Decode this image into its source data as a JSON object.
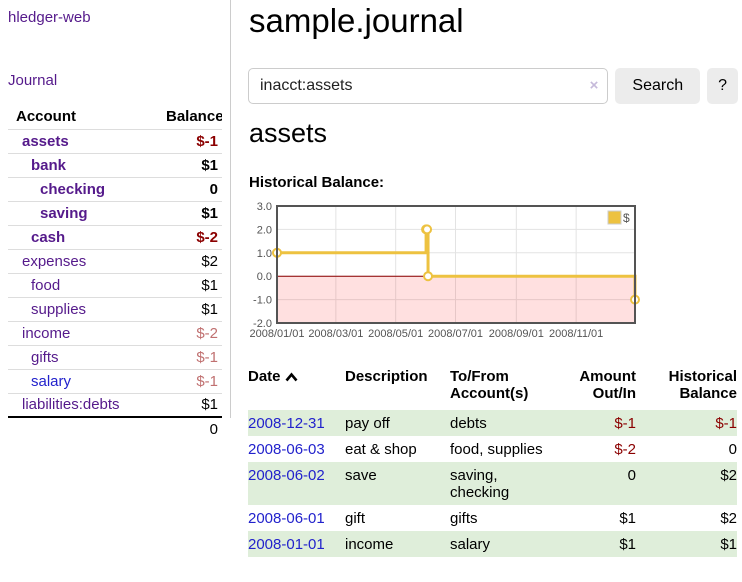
{
  "app": {
    "title": "hledger-web"
  },
  "nav": {
    "journal": "Journal"
  },
  "sidebar": {
    "header": {
      "account": "Account",
      "balance": "Balance"
    },
    "accounts": [
      {
        "name": "assets",
        "depth": 1,
        "bold": true,
        "balance": "$-1"
      },
      {
        "name": "bank",
        "depth": 2,
        "bold": true,
        "balance": "$1"
      },
      {
        "name": "checking",
        "depth": 3,
        "bold": true,
        "balance": "0"
      },
      {
        "name": "saving",
        "depth": 3,
        "bold": true,
        "balance": "$1"
      },
      {
        "name": "cash",
        "depth": 2,
        "bold": true,
        "balance": "$-2"
      },
      {
        "name": "expenses",
        "depth": 1,
        "bold": false,
        "balance": "$2"
      },
      {
        "name": "food",
        "depth": 2,
        "bold": false,
        "balance": "$1"
      },
      {
        "name": "supplies",
        "depth": 2,
        "bold": false,
        "balance": "$1"
      },
      {
        "name": "income",
        "depth": 1,
        "bold": false,
        "balance": "$-2"
      },
      {
        "name": "gifts",
        "depth": 2,
        "bold": false,
        "balance": "$-1"
      },
      {
        "name": "salary",
        "depth": 2,
        "bold": false,
        "balance": "$-1"
      },
      {
        "name": "liabilities:debts",
        "depth": 1,
        "bold": false,
        "balance": "$1"
      }
    ],
    "total": "0"
  },
  "header": {
    "title": "sample.journal"
  },
  "search": {
    "value": "inacct:assets",
    "clear_icon": "×",
    "button": "Search",
    "help": "?"
  },
  "account_page": {
    "heading": "assets",
    "chart_title": "Historical Balance:"
  },
  "chart_data": {
    "type": "line",
    "title": "Historical Balance:",
    "step": true,
    "series": [
      {
        "name": "$",
        "color": "#edc240",
        "points": [
          [
            "2008-01-01",
            1
          ],
          [
            "2008-06-01",
            2
          ],
          [
            "2008-06-02",
            2
          ],
          [
            "2008-06-03",
            0
          ],
          [
            "2008-12-31",
            -1
          ]
        ]
      }
    ],
    "xlim": [
      "2008-01-01",
      "2008-12-31"
    ],
    "ylim": [
      -2,
      3
    ],
    "y_ticks": [
      3.0,
      2.0,
      1.0,
      0.0,
      -1.0,
      -2.0
    ],
    "x_ticks": [
      "2008/01/01",
      "2008/03/01",
      "2008/05/01",
      "2008/07/01",
      "2008/09/01",
      "2008/11/01"
    ],
    "grid": true,
    "legend_position": "top-right",
    "negative_fill": "rgba(255,0,0,0.12)",
    "zero_line_color": "#8b0000"
  },
  "register": {
    "columns": [
      "Date",
      "Description",
      "To/From Account(s)",
      "Amount Out/In",
      "Historical Balance"
    ],
    "rows": [
      {
        "date": "2008-12-31",
        "description": "pay off",
        "accounts": "debts",
        "amount": "$-1",
        "balance": "$-1"
      },
      {
        "date": "2008-06-03",
        "description": "eat & shop",
        "accounts": "food, supplies",
        "amount": "$-2",
        "balance": "0"
      },
      {
        "date": "2008-06-02",
        "description": "save",
        "accounts": "saving, checking",
        "amount": "0",
        "balance": "$2"
      },
      {
        "date": "2008-06-01",
        "description": "gift",
        "accounts": "gifts",
        "amount": "$1",
        "balance": "$2"
      },
      {
        "date": "2008-01-01",
        "description": "income",
        "accounts": "salary",
        "amount": "$1",
        "balance": "$1"
      }
    ]
  },
  "colors": {
    "purple_link": "#551a8b",
    "blue_link": "#2222cc",
    "negative_strong": "#8b0000",
    "negative_soft": "#c07070",
    "row_green": "#dfeeda",
    "chart_line": "#edc240",
    "chart_frame": "#545454",
    "zero_line": "#8b0000"
  }
}
